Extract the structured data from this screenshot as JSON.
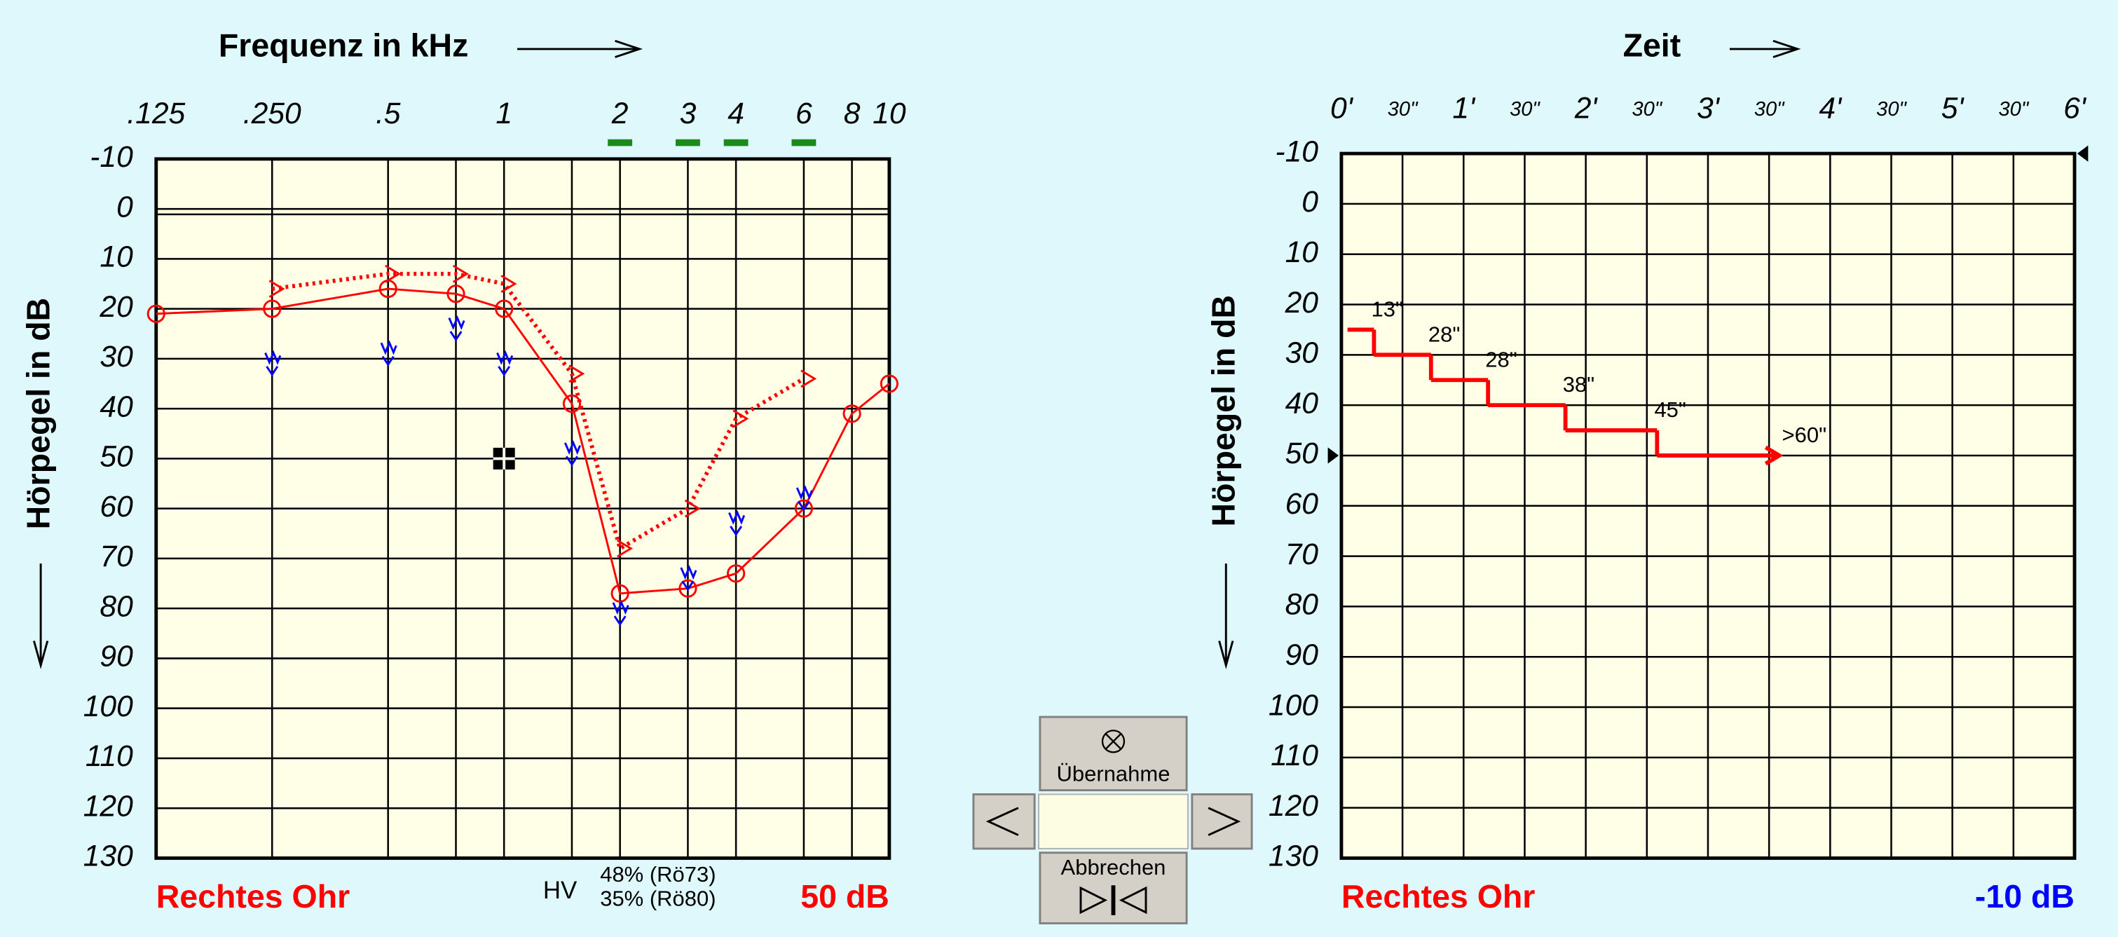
{
  "chart_data": [
    {
      "type": "audiogram",
      "title": "Frequenz in kHz",
      "y_label": "Hörpegel in dB",
      "x_log": true,
      "xlim": [
        0.125,
        10
      ],
      "xticks": [
        {
          "value": 0.125,
          "label": ".125"
        },
        {
          "value": 0.25,
          "label": ".250"
        },
        {
          "value": 0.5,
          "label": ".5"
        },
        1,
        2,
        3,
        4,
        6,
        8,
        10
      ],
      "x_minor_grid": [
        0.75,
        1.5
      ],
      "highlighted_x": [
        2,
        3,
        4,
        6
      ],
      "highlight_color": "#1a8a1a",
      "ylim": [
        -10,
        130
      ],
      "yticks": [
        -10,
        0,
        10,
        20,
        30,
        40,
        50,
        60,
        70,
        80,
        90,
        100,
        110,
        120,
        130
      ],
      "y_inverted": true,
      "grid": true,
      "series": [
        {
          "color": "#ff0000",
          "marker": "circle",
          "line": "solid",
          "x": [
            0.125,
            0.25,
            0.5,
            0.75,
            1,
            1.5,
            2,
            3,
            4,
            6,
            8,
            10
          ],
          "values": [
            21,
            20,
            16,
            17,
            20,
            39,
            77,
            76,
            73,
            60,
            41,
            35
          ]
        },
        {
          "color": "#ff0000",
          "marker": "chevron",
          "line": "dotted",
          "x": [
            0.25,
            0.5,
            0.75,
            1,
            1.5,
            2,
            3,
            4,
            6
          ],
          "values": [
            16,
            13,
            13,
            15,
            33,
            68,
            60,
            42,
            34
          ]
        },
        {
          "color": "#0000ff",
          "marker": "bone",
          "line": "none",
          "x": [
            0.25,
            0.5,
            0.75,
            1,
            1.5,
            2,
            3,
            4,
            6
          ],
          "values": [
            31,
            29,
            24,
            31,
            49,
            81,
            74,
            63,
            58
          ]
        }
      ],
      "masking_point": {
        "x": 1,
        "y": 50
      },
      "side_label": "Rechtes Ohr",
      "side_color": "#ff0000",
      "level": 50,
      "level_label": "50 dB",
      "level_color": "#ff0000",
      "hv_label": "HV",
      "speech_lines": [
        "48% (Rö73)",
        "35% (Rö80)"
      ]
    },
    {
      "type": "step",
      "title": "Zeit",
      "y_label": "Hörpegel in dB",
      "xlim": [
        0,
        360
      ],
      "xticks": [
        {
          "value": 0,
          "label": "0'"
        },
        {
          "value": 30,
          "label": "30\""
        },
        {
          "value": 60,
          "label": "1'"
        },
        {
          "value": 90,
          "label": "30\""
        },
        {
          "value": 120,
          "label": "2'"
        },
        {
          "value": 150,
          "label": "30\""
        },
        {
          "value": 180,
          "label": "3'"
        },
        {
          "value": 210,
          "label": "30\""
        },
        {
          "value": 240,
          "label": "4'"
        },
        {
          "value": 270,
          "label": "30\""
        },
        {
          "value": 300,
          "label": "5'"
        },
        {
          "value": 330,
          "label": "30\""
        },
        {
          "value": 360,
          "label": "6'"
        }
      ],
      "ylim": [
        -10,
        130
      ],
      "yticks": [
        -10,
        0,
        10,
        20,
        30,
        40,
        50,
        60,
        70,
        80,
        90,
        100,
        110,
        120,
        130
      ],
      "y_inverted": true,
      "grid": true,
      "color": "#ff0000",
      "start": 3,
      "levels": [
        25,
        30,
        35,
        40,
        45,
        50
      ],
      "durations": [
        13,
        28,
        28,
        38,
        45,
        60
      ],
      "duration_labels": [
        "13\"",
        "28\"",
        "28\"",
        "38\"",
        "45\"",
        ">60\""
      ],
      "side_label": "Rechtes Ohr",
      "side_color": "#ff0000",
      "level": -10,
      "level_label": "-10 dB",
      "level_color": "#0000ff"
    }
  ],
  "controls": {
    "accept": "Übernahme",
    "cancel": "Abbrechen"
  }
}
